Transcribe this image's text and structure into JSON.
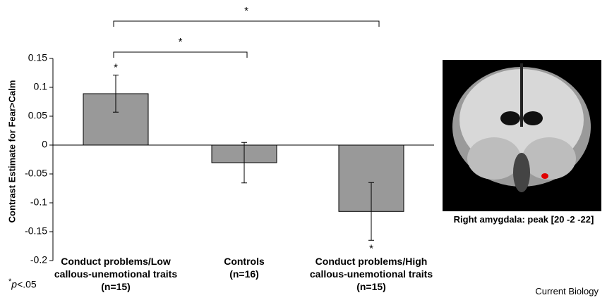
{
  "chart_data": {
    "type": "bar",
    "ylabel": "Contrast Estimate for Fear>Calm",
    "categories": [
      "Conduct problems/Low callous-unemotional traits (n=15)",
      "Controls (n=16)",
      "Conduct problems/High callous-unemotional traits (n=15)"
    ],
    "values": [
      0.089,
      -0.0305,
      -0.115
    ],
    "errors": [
      0.032,
      0.035,
      0.05
    ],
    "color": "#999999",
    "ylim": [
      -0.2,
      0.15
    ],
    "yticks": [
      -0.2,
      -0.15,
      -0.1,
      -0.05,
      0,
      0.05,
      0.1,
      0.15
    ],
    "bar_marks": [
      "*",
      null,
      "*"
    ],
    "brackets": [
      {
        "label": "*"
      },
      {
        "label": "*"
      }
    ],
    "footnote": {
      "symbol": "*",
      "italic": "p",
      "text": "<.05"
    }
  },
  "image_caption": "Right amygdala: peak [20 -2 -22]",
  "source": "Current Biology"
}
